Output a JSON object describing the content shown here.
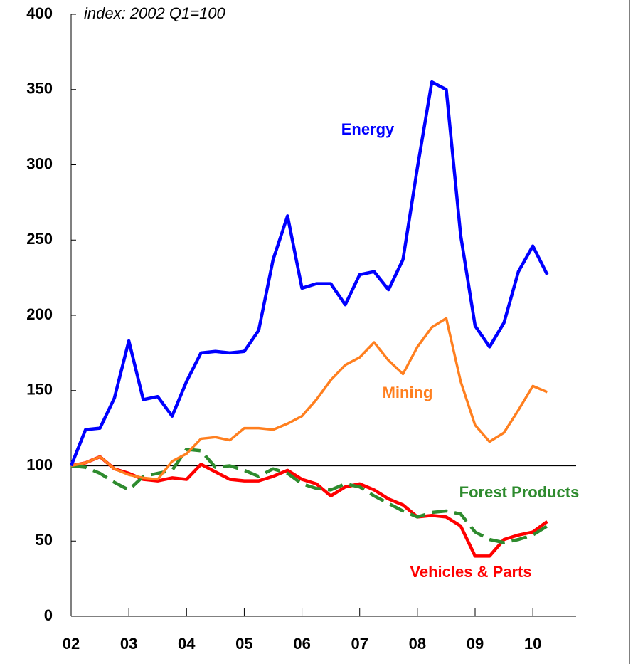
{
  "chart_data": {
    "type": "line",
    "subtitle": "index: 2002 Q1=100",
    "x": [
      2002,
      2002.25,
      2002.5,
      2002.75,
      2003,
      2003.25,
      2003.5,
      2003.75,
      2004,
      2004.25,
      2004.5,
      2004.75,
      2005,
      2005.25,
      2005.5,
      2005.75,
      2006,
      2006.25,
      2006.5,
      2006.75,
      2007,
      2007.25,
      2007.5,
      2007.75,
      2008,
      2008.25,
      2008.5,
      2008.75,
      2009,
      2009.25,
      2009.5,
      2009.75,
      2010,
      2010.25
    ],
    "series": [
      {
        "name": "Energy",
        "color": "#0000ff",
        "values": [
          100,
          124,
          125,
          145,
          183,
          144,
          146,
          133,
          156,
          175,
          176,
          175,
          176,
          190,
          237,
          266,
          218,
          221,
          221,
          207,
          227,
          229,
          217,
          237,
          298,
          355,
          350,
          253,
          193,
          179,
          195,
          229,
          246,
          227
        ]
      },
      {
        "name": "Mining",
        "color": "#ff7f1f",
        "values": [
          100,
          102,
          106,
          98,
          94,
          92,
          91,
          103,
          108,
          118,
          119,
          117,
          125,
          125,
          124,
          128,
          133,
          144,
          157,
          167,
          172,
          182,
          170,
          161,
          179,
          192,
          198,
          156,
          127,
          116,
          122,
          137,
          153,
          149
        ]
      },
      {
        "name": "Forest Products",
        "color": "#2e8b2e",
        "dashed": true,
        "values": [
          100,
          99,
          95,
          89,
          84,
          93,
          95,
          97,
          111,
          110,
          99,
          100,
          97,
          93,
          98,
          95,
          88,
          85,
          84,
          88,
          86,
          80,
          75,
          70,
          66,
          69,
          70,
          68,
          56,
          51,
          49,
          51,
          54,
          60
        ]
      },
      {
        "name": "Vehicles & Parts",
        "color": "#ff0000",
        "values": [
          100,
          102,
          106,
          98,
          95,
          91,
          90,
          92,
          91,
          101,
          96,
          91,
          90,
          90,
          93,
          97,
          91,
          88,
          80,
          86,
          88,
          84,
          78,
          74,
          66,
          67,
          66,
          60,
          40,
          40,
          51,
          54,
          56,
          63
        ]
      }
    ],
    "xlim": [
      2002,
      2010.75
    ],
    "xticks": [
      {
        "value": 2002,
        "label": "02"
      },
      {
        "value": 2003,
        "label": "03"
      },
      {
        "value": 2004,
        "label": "04"
      },
      {
        "value": 2005,
        "label": "05"
      },
      {
        "value": 2006,
        "label": "06"
      },
      {
        "value": 2007,
        "label": "07"
      },
      {
        "value": 2008,
        "label": "08"
      },
      {
        "value": 2009,
        "label": "09"
      },
      {
        "value": 2010,
        "label": "10"
      }
    ],
    "ylim": [
      0,
      400
    ],
    "yticks": [
      0,
      50,
      100,
      150,
      200,
      250,
      300,
      350,
      400
    ],
    "reference_line": 100
  }
}
